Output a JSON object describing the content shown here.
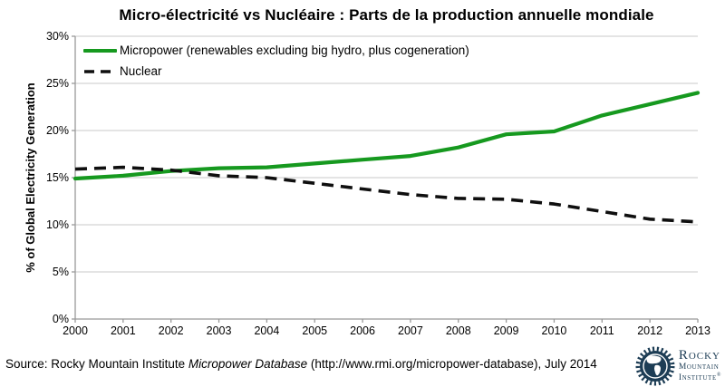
{
  "title": "Micro-électricité vs Nucléaire : Parts de la production annuelle mondiale",
  "chart_data": {
    "type": "line",
    "x": [
      2000,
      2001,
      2002,
      2003,
      2004,
      2005,
      2006,
      2007,
      2008,
      2009,
      2010,
      2011,
      2012,
      2013
    ],
    "series": [
      {
        "name": "Micropower (renewables excluding big hydro, plus cogeneration)",
        "color": "#16991f",
        "style": "solid",
        "values": [
          14.9,
          15.2,
          15.7,
          16.0,
          16.1,
          16.5,
          16.9,
          17.3,
          18.2,
          19.6,
          19.9,
          21.6,
          22.8,
          24.0
        ]
      },
      {
        "name": "Nuclear",
        "color": "#0f0f0f",
        "style": "dashed",
        "values": [
          15.9,
          16.1,
          15.8,
          15.2,
          15.0,
          14.4,
          13.8,
          13.2,
          12.8,
          12.7,
          12.2,
          11.4,
          10.6,
          10.3
        ]
      }
    ],
    "ylabel": "% of Global Electricity Generation",
    "xlabel": "",
    "ylim": [
      0,
      30
    ],
    "ytick_step": 5,
    "ytick_labels": [
      "0%",
      "5%",
      "10%",
      "15%",
      "20%",
      "25%",
      "30%"
    ],
    "grid": true,
    "legend_position": "top-left",
    "grid_color": "#c9c9c9",
    "axis_color": "#999999"
  },
  "footer": {
    "source_prefix": "Source: Rocky Mountain Institute ",
    "source_italic": "Micropower Database",
    "source_suffix": " (http://www.rmi.org/micropower-database), July 2014",
    "logo": {
      "color": "#1d3d55",
      "line1": "Rocky",
      "line2": "Mountain",
      "line3": "Institute",
      "registered": "®"
    }
  }
}
